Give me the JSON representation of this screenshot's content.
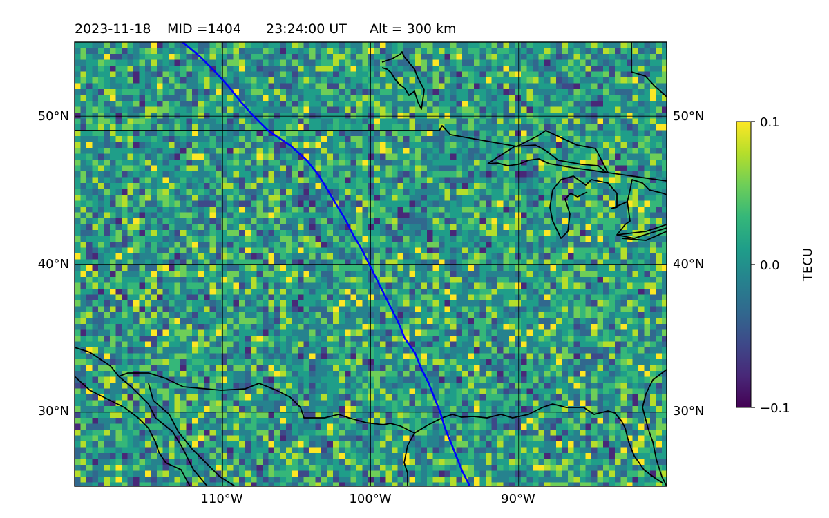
{
  "title": {
    "date": "2023-11-18",
    "mid": "MID =1404",
    "time": "23:24:00  UT",
    "alt": "Alt = 300 km"
  },
  "map": {
    "lon_range": [
      -120,
      -80
    ],
    "lat_range": [
      25,
      55
    ],
    "grid_lons": [
      -110,
      -100,
      -90
    ],
    "grid_lats": [
      30,
      40,
      50
    ],
    "lon_labels": [
      "110°W",
      "100°W",
      "90°W"
    ],
    "lat_labels": [
      "30°N",
      "40°N",
      "50°N"
    ],
    "track_color": "#0000ff",
    "coast_color": "#000000",
    "track": [
      [
        -112.7,
        55
      ],
      [
        -111.5,
        54
      ],
      [
        -110.5,
        53
      ],
      [
        -109.6,
        52
      ],
      [
        -108.8,
        51
      ],
      [
        -107.9,
        50
      ],
      [
        -106.9,
        49
      ],
      [
        -105.4,
        48
      ],
      [
        -104.3,
        47
      ],
      [
        -103.5,
        46
      ],
      [
        -102.9,
        45
      ],
      [
        -102.3,
        44
      ],
      [
        -101.7,
        43
      ],
      [
        -101.2,
        42
      ],
      [
        -100.6,
        41
      ],
      [
        -100.1,
        40
      ],
      [
        -99.6,
        39
      ],
      [
        -99.1,
        38
      ],
      [
        -98.6,
        37
      ],
      [
        -98.1,
        36
      ],
      [
        -97.7,
        35
      ],
      [
        -97.0,
        34
      ],
      [
        -96.6,
        33
      ],
      [
        -96.1,
        32
      ],
      [
        -95.7,
        31
      ],
      [
        -95.3,
        30
      ],
      [
        -95.0,
        29
      ],
      [
        -94.6,
        28
      ],
      [
        -94.2,
        27
      ],
      [
        -93.8,
        26
      ],
      [
        -93.3,
        25
      ]
    ]
  },
  "colorbar": {
    "label": "TECU",
    "ticks": [
      "0.1",
      "0.0",
      "−0.1"
    ],
    "colors": [
      "#440154",
      "#482878",
      "#3e4989",
      "#31688e",
      "#26828e",
      "#1f9e89",
      "#35b779",
      "#6ece58",
      "#b5de2b",
      "#fde725"
    ]
  }
}
